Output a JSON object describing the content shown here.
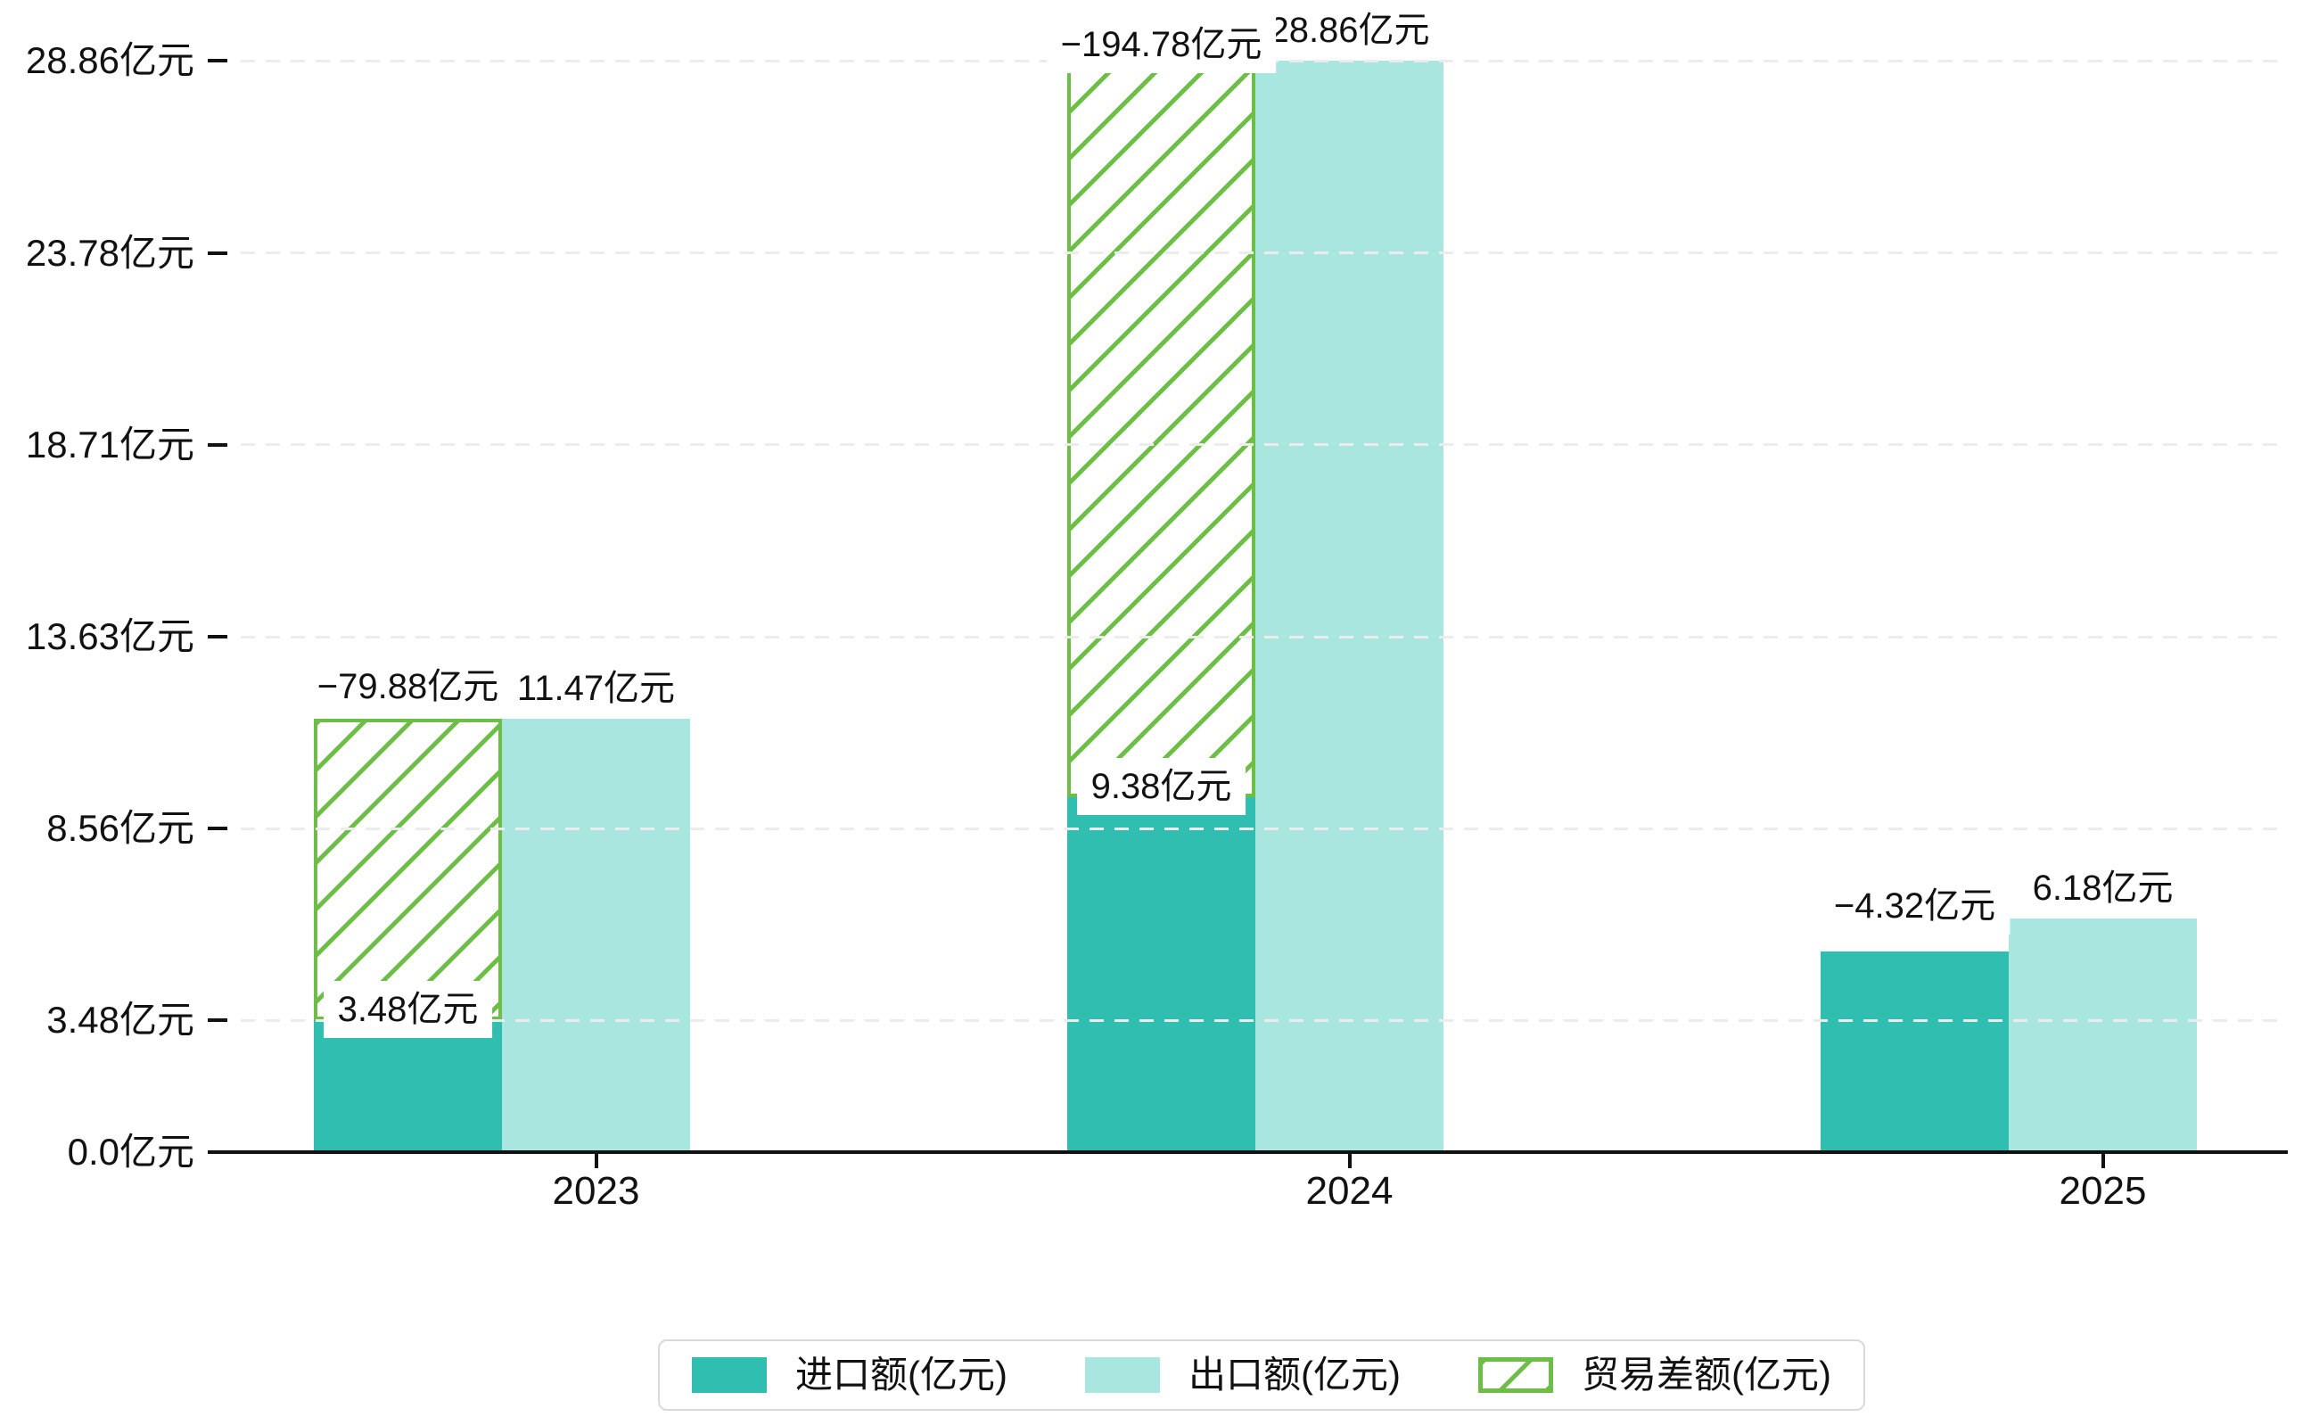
{
  "chart_data": {
    "type": "bar",
    "categories": [
      "2023",
      "2024",
      "2025"
    ],
    "unit": "亿元",
    "series": [
      {
        "name": "进口额(亿元)",
        "color": "#30BEB1",
        "values": [
          3.48,
          9.38,
          5.3
        ],
        "labels": [
          "3.48亿元",
          "9.38亿元",
          null
        ]
      },
      {
        "name": "出口额(亿元)",
        "color": "#A9E6DF",
        "values": [
          11.47,
          28.86,
          6.18
        ],
        "labels": [
          "11.47亿元",
          "28.86亿元",
          "6.18亿元"
        ]
      },
      {
        "name": "贸易差额(亿元)",
        "color": "#6DBE46",
        "style": "hatched",
        "values": [
          -79.88,
          -194.78,
          -4.32
        ],
        "labels": [
          "−79.88亿元",
          "−194.78亿元",
          "−4.32亿元"
        ],
        "bar_spans": [
          [
            3.48,
            11.47
          ],
          [
            9.38,
            28.86
          ],
          null
        ]
      }
    ],
    "y_ticks": [
      0.0,
      3.48,
      8.56,
      13.63,
      18.71,
      23.78,
      28.86
    ],
    "y_tick_labels": [
      "0.0亿元",
      "3.48亿元",
      "8.56亿元",
      "13.63亿元",
      "18.71亿元",
      "23.78亿元",
      "28.86亿元"
    ],
    "ylim": [
      0,
      30.5
    ],
    "grid": true,
    "grid_style": "dashed",
    "legend_position": "bottom"
  },
  "colors": {
    "import_bar": "#30BEB1",
    "export_bar": "#A9E6DF",
    "hatch_green": "#6DBE46",
    "axis": "#111111",
    "grid": "#ECECEC",
    "label_box_bg": "#FFFFFF",
    "legend_border": "#D9D9D9"
  }
}
